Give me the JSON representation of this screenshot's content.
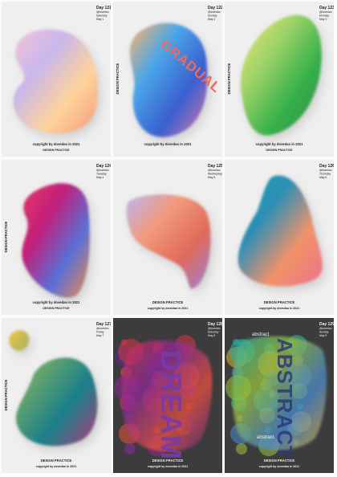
{
  "posters": [
    {
      "day": "Day 121",
      "handle": "@dovedao",
      "weekday": "Saturday",
      "date": "May 1",
      "footer": [
        "copyright by dovedao in 2021",
        "DESIGN PRACTICE"
      ]
    },
    {
      "day": "Day 122",
      "handle": "@dovedao",
      "weekday": "Sunday",
      "date": "May 2",
      "side_label": "DESIGN PRACTICE",
      "art_text": "GRADUAL",
      "footer": [
        "copyright by dovedao in 2021"
      ]
    },
    {
      "day": "Day 123",
      "handle": "@dovedao",
      "weekday": "Monday",
      "date": "May 3",
      "side_label": "DESIGN PRACTICE",
      "footer": [
        "copyright by dovedao in 2021",
        "DESIGN PRACTICE"
      ]
    },
    {
      "day": "Day 124",
      "handle": "@dovedao",
      "weekday": "Tuesday",
      "date": "May 4",
      "side_label": "DESIGN PRACTICE",
      "footer": [
        "copyright by dovedao in 2021",
        "DESIGN PRACTICE"
      ]
    },
    {
      "day": "Day 125",
      "handle": "@dovedao",
      "weekday": "Wednesday",
      "date": "May 5",
      "footer": [
        "DESIGN PRACTICE",
        "copyright by dovedao in 2021"
      ]
    },
    {
      "day": "Day 126",
      "handle": "@dovedao",
      "weekday": "Thursday",
      "date": "May 6",
      "footer": [
        "DESIGN PRACTICE",
        "copyright by dovedao in 2021"
      ]
    },
    {
      "day": "Day 127",
      "handle": "@dovedao",
      "weekday": "Friday",
      "date": "May 7",
      "side_label": "DESIGN PRACTICE",
      "footer": [
        "DESIGN PRACTICE",
        "copyright by dovedao in 2021"
      ]
    },
    {
      "day": "Day 128",
      "handle": "@dovedao",
      "weekday": "Saturday",
      "date": "May 8",
      "art_text": "DREAM",
      "footer": [
        "DESIGN PRACTICE",
        "copyright by dovedao in 2021"
      ]
    },
    {
      "day": "Day 129",
      "handle": "@dovedao",
      "weekday": "Sunday",
      "date": "May 9",
      "art_text": "ABSTRACT",
      "small_text": "abstract",
      "footer": [
        "DESIGN PRACTICE",
        "copyright by dovedao in 2021"
      ]
    }
  ]
}
